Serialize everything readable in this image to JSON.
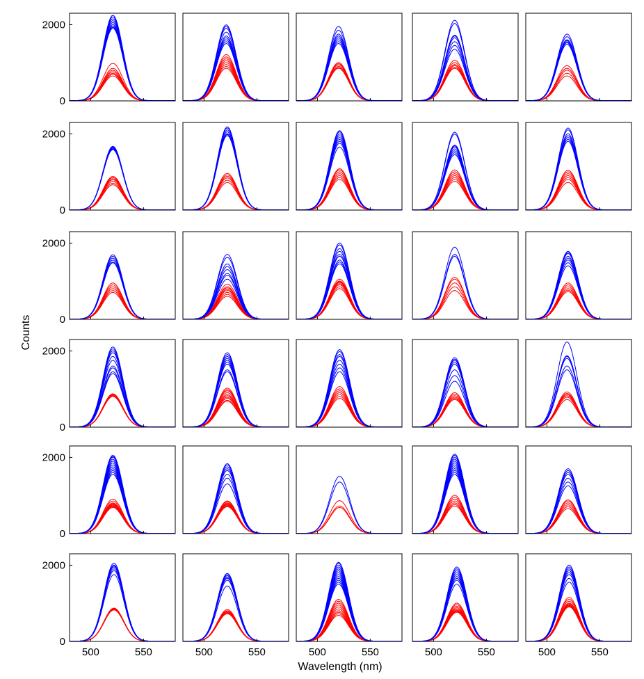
{
  "chart_data": {
    "type": "line",
    "layout": "grid of spectra panels, 6 rows x 5 columns",
    "xlabel": "Wavelength (nm)",
    "ylabel": "Counts",
    "xlim": [
      480,
      580
    ],
    "ylim": [
      0,
      2300
    ],
    "x_ticks": [
      500,
      550
    ],
    "y_ticks": [
      0,
      2000
    ],
    "grid": false,
    "legend": "none",
    "colors": {
      "blue": "#0000ff",
      "red": "#ff0000"
    },
    "peak_fwhm_nm": 22,
    "panels": [
      {
        "row": 0,
        "col": 0,
        "center": 521,
        "blue": [
          2240,
          2200,
          2150,
          2100,
          2050,
          2000,
          1960,
          1930,
          1900
        ],
        "red": [
          980,
          850,
          800,
          760,
          720,
          690,
          650
        ]
      },
      {
        "row": 0,
        "col": 1,
        "center": 521,
        "blue": [
          1990,
          1950,
          1900,
          1800,
          1700,
          1650,
          1600,
          1550,
          1500
        ],
        "red": [
          1210,
          1150,
          1100,
          1050,
          1000,
          950,
          900,
          850
        ]
      },
      {
        "row": 0,
        "col": 2,
        "center": 520,
        "blue": [
          1950,
          1850,
          1750,
          1700,
          1650,
          1600,
          1550,
          1500
        ],
        "red": [
          1000,
          970,
          940,
          900,
          870,
          850
        ]
      },
      {
        "row": 0,
        "col": 3,
        "center": 520,
        "blue": [
          2110,
          2030,
          1720,
          1700,
          1650,
          1550,
          1450,
          1350
        ],
        "red": [
          1060,
          1000,
          950,
          920,
          880,
          850
        ]
      },
      {
        "row": 0,
        "col": 4,
        "center": 519,
        "blue": [
          1750,
          1680,
          1600,
          1580,
          1550,
          1520,
          1480
        ],
        "red": [
          920,
          850,
          800,
          720,
          650
        ]
      },
      {
        "row": 1,
        "col": 0,
        "center": 521,
        "blue": [
          1670,
          1650,
          1630,
          1610,
          1600,
          1580
        ],
        "red": [
          880,
          850,
          820,
          790,
          750,
          700,
          660
        ]
      },
      {
        "row": 1,
        "col": 1,
        "center": 522,
        "blue": [
          2180,
          2150,
          2100,
          2050,
          2000,
          1980,
          1950
        ],
        "red": [
          960,
          920,
          880,
          840,
          780,
          720
        ]
      },
      {
        "row": 1,
        "col": 2,
        "center": 521,
        "blue": [
          2080,
          2050,
          2000,
          1950,
          1900,
          1850,
          1800,
          1750,
          1650
        ],
        "red": [
          1080,
          1050,
          1000,
          950,
          900,
          850,
          800
        ]
      },
      {
        "row": 1,
        "col": 3,
        "center": 520,
        "blue": [
          2040,
          1990,
          1700,
          1680,
          1650,
          1600,
          1550,
          1500,
          1450
        ],
        "red": [
          1050,
          1000,
          950,
          900,
          850,
          800,
          750
        ]
      },
      {
        "row": 1,
        "col": 4,
        "center": 520,
        "blue": [
          2150,
          2100,
          2000,
          1950,
          1900,
          1850,
          1800
        ],
        "red": [
          1040,
          1000,
          950,
          900,
          850,
          800,
          720
        ]
      },
      {
        "row": 2,
        "col": 0,
        "center": 521,
        "blue": [
          1690,
          1650,
          1600,
          1550,
          1500,
          1480
        ],
        "red": [
          950,
          900,
          850,
          800,
          750,
          700
        ]
      },
      {
        "row": 2,
        "col": 1,
        "center": 522,
        "blue": [
          1700,
          1620,
          1450,
          1380,
          1300,
          1200,
          1150,
          1050
        ],
        "red": [
          920,
          850,
          820,
          780,
          750,
          700,
          650,
          600
        ]
      },
      {
        "row": 2,
        "col": 2,
        "center": 521,
        "blue": [
          2000,
          1950,
          1850,
          1780,
          1700,
          1650,
          1550,
          1500,
          1450
        ],
        "red": [
          1050,
          1000,
          980,
          960,
          930,
          900,
          850,
          800
        ]
      },
      {
        "row": 2,
        "col": 3,
        "center": 520,
        "blue": [
          1890,
          1700,
          1650
        ],
        "red": [
          1100,
          1050,
          950,
          850,
          750
        ]
      },
      {
        "row": 2,
        "col": 4,
        "center": 520,
        "blue": [
          1780,
          1750,
          1720,
          1650,
          1600,
          1550,
          1480,
          1400
        ],
        "red": [
          950,
          900,
          850,
          800,
          760,
          720
        ]
      },
      {
        "row": 3,
        "col": 0,
        "center": 521,
        "blue": [
          2100,
          2050,
          2000,
          1950,
          1850,
          1750,
          1600,
          1550,
          1450,
          1400
        ],
        "red": [
          870,
          860,
          850,
          840,
          820,
          800
        ]
      },
      {
        "row": 3,
        "col": 1,
        "center": 522,
        "blue": [
          1950,
          1900,
          1850,
          1800,
          1750,
          1700,
          1650,
          1500,
          1450
        ],
        "red": [
          1020,
          980,
          950,
          900,
          850,
          820,
          780,
          750,
          700,
          680
        ]
      },
      {
        "row": 3,
        "col": 2,
        "center": 521,
        "blue": [
          2030,
          1980,
          1900,
          1850,
          1750,
          1650,
          1550,
          1450
        ],
        "red": [
          1060,
          1000,
          950,
          900,
          850,
          800,
          750
        ]
      },
      {
        "row": 3,
        "col": 3,
        "center": 520,
        "blue": [
          1820,
          1780,
          1750,
          1700,
          1650,
          1500,
          1350,
          1200
        ],
        "red": [
          900,
          860,
          820,
          780,
          750,
          720
        ]
      },
      {
        "row": 3,
        "col": 4,
        "center": 519,
        "blue": [
          2230,
          1870,
          1850,
          1800,
          1600,
          1500
        ],
        "red": [
          920,
          880,
          850,
          820,
          780,
          720
        ]
      },
      {
        "row": 4,
        "col": 0,
        "center": 521,
        "blue": [
          2050,
          2020,
          2000,
          1950,
          1900,
          1850,
          1800,
          1750,
          1700,
          1650,
          1600,
          1550
        ],
        "red": [
          900,
          850,
          800,
          780,
          760,
          740,
          720,
          700,
          680
        ]
      },
      {
        "row": 4,
        "col": 1,
        "center": 522,
        "blue": [
          1830,
          1800,
          1750,
          1700,
          1650,
          1550,
          1450,
          1300
        ],
        "red": [
          850,
          830,
          800,
          780,
          760,
          740,
          720,
          700
        ]
      },
      {
        "row": 4,
        "col": 2,
        "center": 521,
        "blue": [
          1500,
          1350
        ],
        "red": [
          860,
          720,
          680
        ]
      },
      {
        "row": 4,
        "col": 3,
        "center": 520,
        "blue": [
          2080,
          2050,
          2000,
          1950,
          1900,
          1850,
          1800,
          1750,
          1700,
          1650,
          1600,
          1550
        ],
        "red": [
          1000,
          950,
          900,
          850,
          800,
          760,
          720
        ]
      },
      {
        "row": 4,
        "col": 4,
        "center": 520,
        "blue": [
          1700,
          1650,
          1600,
          1550,
          1450,
          1350,
          1250
        ],
        "red": [
          880,
          850,
          800,
          750,
          700,
          650
        ]
      },
      {
        "row": 5,
        "col": 0,
        "center": 522,
        "blue": [
          2050,
          2000,
          1980,
          1950,
          1900,
          1850,
          1750
        ],
        "red": [
          870,
          860,
          850,
          840,
          830,
          820
        ]
      },
      {
        "row": 5,
        "col": 1,
        "center": 522,
        "blue": [
          1780,
          1750,
          1720,
          1680,
          1650,
          1600,
          1450
        ],
        "red": [
          830,
          800,
          780,
          760,
          740,
          720
        ]
      },
      {
        "row": 5,
        "col": 2,
        "center": 520,
        "blue": [
          2070,
          2050,
          2000,
          1950,
          1900,
          1850,
          1800,
          1750,
          1700,
          1650,
          1600,
          1550,
          1500
        ],
        "red": [
          1100,
          1050,
          1000,
          950,
          900,
          850,
          800,
          760,
          720,
          680
        ]
      },
      {
        "row": 5,
        "col": 3,
        "center": 522,
        "blue": [
          1950,
          1900,
          1850,
          1800,
          1750,
          1700,
          1650,
          1600,
          1500
        ],
        "red": [
          1000,
          960,
          920,
          880,
          850,
          820,
          800,
          780,
          760
        ]
      },
      {
        "row": 5,
        "col": 4,
        "center": 521,
        "blue": [
          2000,
          1950,
          1900,
          1850,
          1800,
          1750,
          1650,
          1550
        ],
        "red": [
          1150,
          1100,
          1050,
          1000,
          980,
          960,
          940,
          920,
          900
        ]
      }
    ]
  }
}
